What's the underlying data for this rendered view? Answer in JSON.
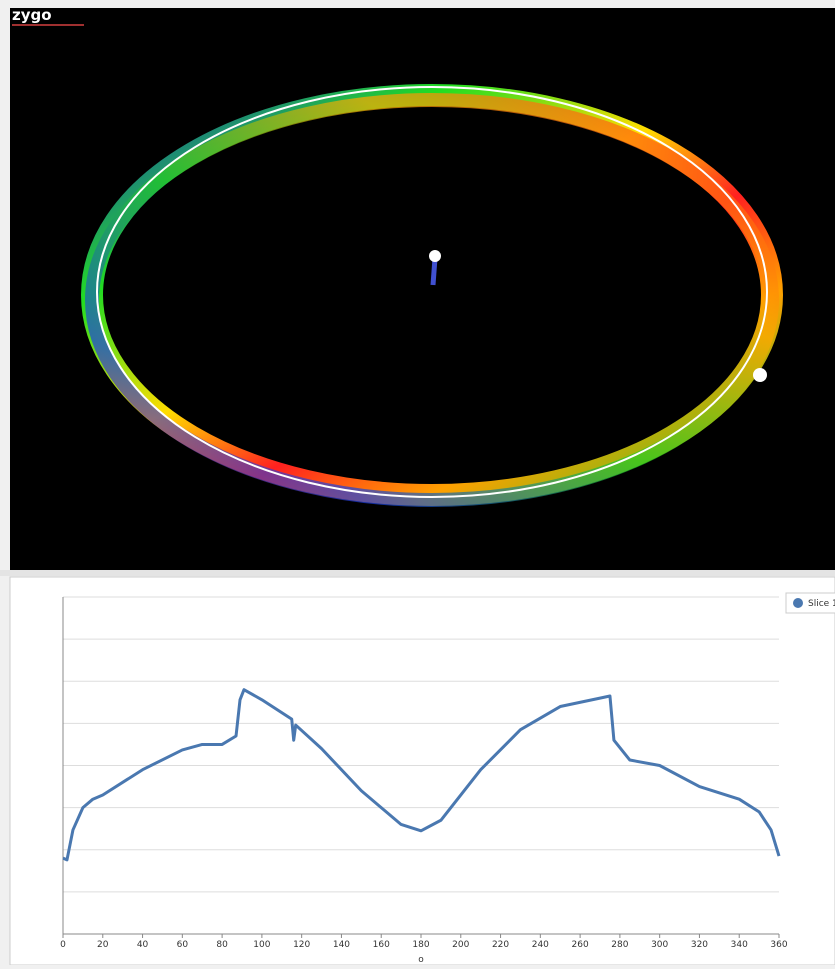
{
  "logo": "zygo",
  "chart_data": {
    "type": "line",
    "xlabel": "o",
    "x": [
      0,
      2,
      5,
      10,
      15,
      20,
      40,
      60,
      70,
      80,
      87,
      89,
      91,
      100,
      115,
      116,
      117,
      130,
      150,
      170,
      180,
      190,
      210,
      230,
      250,
      270,
      275,
      277,
      285,
      300,
      320,
      340,
      350,
      356,
      360
    ],
    "series": [
      {
        "name": "Slice 1",
        "color": "#4a78b0",
        "values": [
          1.8,
          1.76,
          2.47,
          3.0,
          3.2,
          3.3,
          3.9,
          4.37,
          4.5,
          4.5,
          4.7,
          5.56,
          5.8,
          5.56,
          5.1,
          4.6,
          4.96,
          4.4,
          3.4,
          2.6,
          2.45,
          2.7,
          3.9,
          4.85,
          5.4,
          5.6,
          5.65,
          4.6,
          4.13,
          4.0,
          3.5,
          3.2,
          2.9,
          2.47,
          1.85
        ]
      }
    ],
    "xlim": [
      0,
      360
    ],
    "xticks": [
      0,
      20,
      40,
      60,
      80,
      100,
      120,
      140,
      160,
      180,
      200,
      220,
      240,
      260,
      280,
      300,
      320,
      340,
      360
    ],
    "ylim": [
      0,
      8
    ],
    "ygrid": [
      1,
      2,
      3,
      4,
      5,
      6,
      7,
      8
    ],
    "legend": "top-right"
  }
}
